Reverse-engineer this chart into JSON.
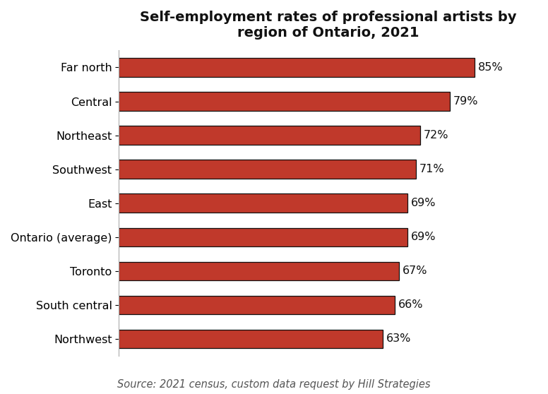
{
  "title": "Self-employment rates of professional artists by\nregion of Ontario, 2021",
  "categories": [
    "Northwest",
    "South central",
    "Toronto",
    "Ontario (average)",
    "East",
    "Southwest",
    "Northeast",
    "Central",
    "Far north"
  ],
  "values": [
    63,
    66,
    67,
    69,
    69,
    71,
    72,
    79,
    85
  ],
  "bar_color": "#C0392B",
  "bar_edgecolor": "#111111",
  "label_color": "#111111",
  "title_fontsize": 14,
  "tick_fontsize": 11.5,
  "label_fontsize": 11.5,
  "source_text": "Source: 2021 census, custom data request by Hill Strategies",
  "source_fontsize": 10.5,
  "xlim": [
    0,
    100
  ],
  "bar_height": 0.55,
  "background_color": "#ffffff"
}
